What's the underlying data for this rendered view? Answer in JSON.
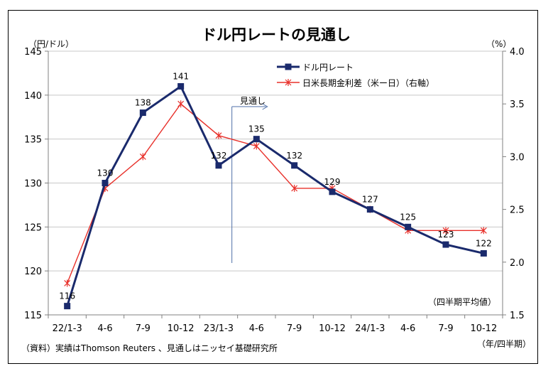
{
  "chart_data": {
    "type": "line",
    "title": "ドル円レートの見通し",
    "ylabel_left": "（円/ドル）",
    "ylabel_right": "（%）",
    "x_unit": "（年/四半期）",
    "categories": [
      "22/1-3",
      "4-6",
      "7-9",
      "10-12",
      "23/1-3",
      "4-6",
      "7-9",
      "10-12",
      "24/1-3",
      "4-6",
      "7-9",
      "10-12"
    ],
    "ylim_left": [
      115,
      145
    ],
    "yticks_left": [
      "115",
      "120",
      "125",
      "130",
      "135",
      "140",
      "145"
    ],
    "ylim_right": [
      1.5,
      4.0
    ],
    "yticks_right": [
      "1.5",
      "2.0",
      "2.5",
      "3.0",
      "3.5",
      "4.0"
    ],
    "series": [
      {
        "name": "ドル円レート",
        "axis": "left",
        "color": "#1a2a6c",
        "values": [
          116,
          130,
          138,
          141,
          132,
          135,
          132,
          129,
          127,
          125,
          123,
          122
        ],
        "data_labels": [
          "116",
          "130",
          "138",
          "141",
          "132",
          "135",
          "132",
          "129",
          "127",
          "125",
          "123",
          "122"
        ]
      },
      {
        "name": "日米長期金利差（米ー日）（右軸）",
        "axis": "right",
        "color": "#e8302a",
        "values": [
          1.8,
          2.7,
          3.0,
          3.5,
          3.2,
          3.1,
          2.7,
          2.7,
          2.5,
          2.3,
          2.3,
          2.3
        ]
      }
    ],
    "forecast_label": "見通し",
    "avg_note": "（四半期平均値）",
    "source": "（資料）実績はThomson Reuters 、見通しはニッセイ基礎研究所",
    "grid": "horizontal",
    "legend_position": "top-right"
  }
}
